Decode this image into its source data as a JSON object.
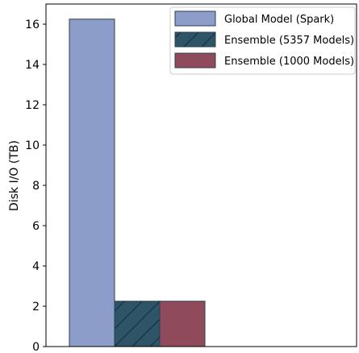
{
  "chart_data": {
    "type": "bar",
    "title": "",
    "xlabel": "",
    "ylabel": "Disk I/O (TB)",
    "ylim": [
      0,
      17
    ],
    "yticks": [
      0,
      2,
      4,
      6,
      8,
      10,
      12,
      14,
      16
    ],
    "categories": [
      ""
    ],
    "grid": false,
    "legend": "top-right",
    "series": [
      {
        "name": "Global Model (Spark)",
        "values": [
          16.25
        ],
        "color": "#8c9dc9",
        "hatch": "none"
      },
      {
        "name": "Ensemble (5357 Models)",
        "values": [
          2.25
        ],
        "color": "#2e5468",
        "hatch": "diagonal"
      },
      {
        "name": "Ensemble (1000 Models)",
        "values": [
          2.25
        ],
        "color": "#8f4b5b",
        "hatch": "none"
      }
    ]
  }
}
